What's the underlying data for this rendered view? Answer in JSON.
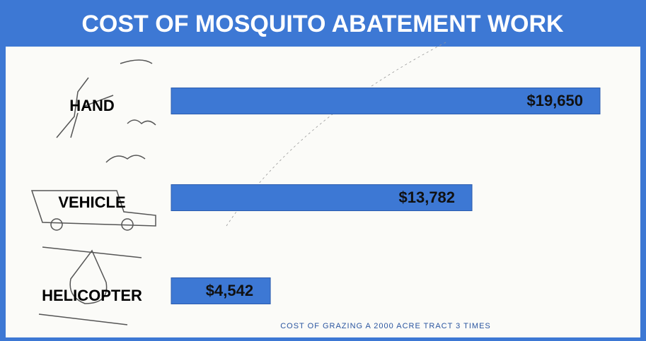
{
  "chart_data": {
    "type": "hbar",
    "title": "COST OF MOSQUITO ABATEMENT WORK",
    "categories": [
      "HAND",
      "VEHICLE",
      "HELICOPTER"
    ],
    "values": [
      19650,
      13782,
      4542
    ],
    "value_labels": [
      "$19,650",
      "$13,782",
      "$4,542"
    ],
    "color": "#3d78d4",
    "note": "COST OF GRAZING A 2000 ACRE TRACT 3 TIMES"
  }
}
